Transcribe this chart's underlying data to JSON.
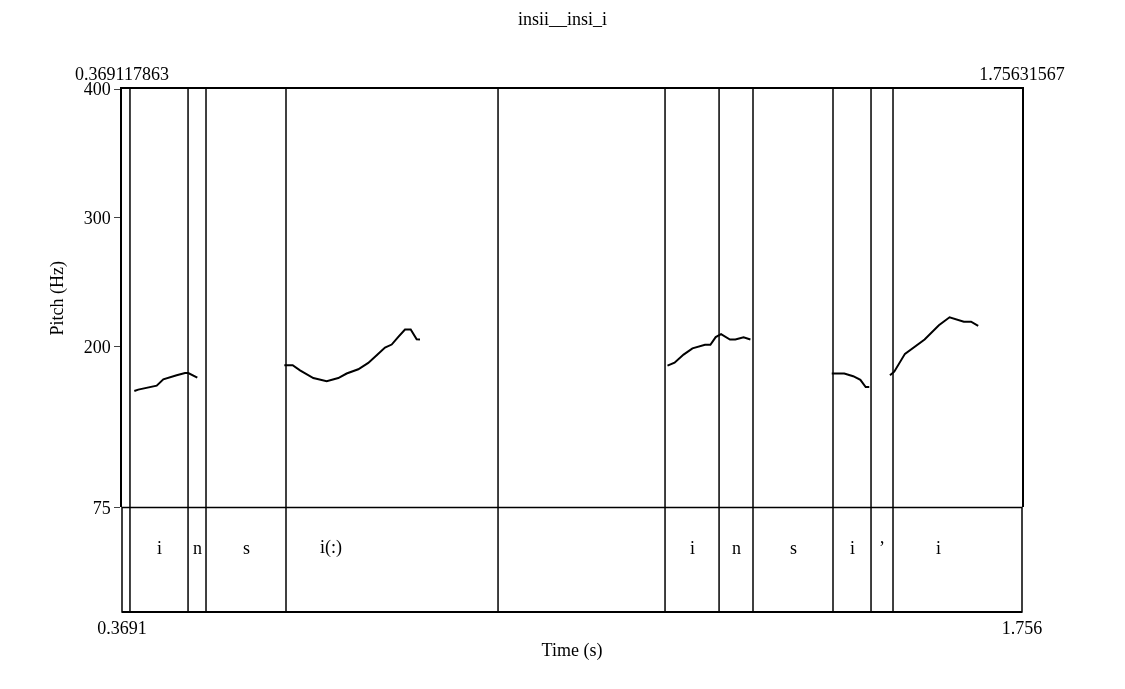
{
  "chart_data": {
    "type": "line",
    "title": "insii__insi_i",
    "xlabel": "Time (s)",
    "ylabel": "Pitch (Hz)",
    "x": [
      0.3881,
      0.3942,
      0.4226,
      0.4328,
      0.4534,
      0.4662,
      0.4713,
      0.4852,
      0.55,
      0.6193,
      0.6322,
      0.6435,
      0.664,
      0.6846,
      0.7025,
      0.7154,
      0.7333,
      0.7487,
      0.7617,
      0.7745,
      0.7848,
      0.795,
      0.8053,
      0.8141,
      0.8233,
      0.8284,
      1.0,
      1.2099,
      1.2208,
      1.2347,
      1.2484,
      1.2677,
      1.276,
      1.2842,
      1.2925,
      1.3062,
      1.3145,
      1.3272,
      1.3377,
      1.4,
      1.4631,
      1.4824,
      1.4961,
      1.5072,
      1.5154,
      1.5209,
      1.54,
      1.5528,
      1.5594,
      1.5759,
      1.6062,
      1.6282,
      1.6447,
      1.6667,
      1.6778,
      1.6888
    ],
    "series": [
      {
        "color": "#000000",
        "values": [
          165.4,
          166.5,
          169.6,
          174.5,
          177.6,
          179.4,
          179.4,
          175.8,
          null,
          185.4,
          185.4,
          181.5,
          175.5,
          173.0,
          175.5,
          179.0,
          182.3,
          187.2,
          193.2,
          199.2,
          201.5,
          207.4,
          213.2,
          213.2,
          205.6,
          205.4,
          null,
          185.1,
          187.4,
          193.7,
          198.5,
          201.3,
          201.3,
          207.3,
          209.6,
          205.4,
          205.4,
          207.1,
          205.4,
          null,
          179.0,
          179.0,
          176.9,
          174.1,
          168.5,
          168.5,
          null,
          177.6,
          180.4,
          194.3,
          205.4,
          216.5,
          222.7,
          219.3,
          219.3,
          216.0
        ]
      }
    ],
    "xlim": [
      0.369117863,
      1.75631567
    ],
    "xticks": [
      {
        "value": 0.369117863,
        "label": "0.3691"
      },
      {
        "value": 1.75631567,
        "label": "1.756"
      }
    ],
    "x2lim": [
      0.369117863,
      1.75631567
    ],
    "x2ticks": [
      {
        "value": 0.369117863,
        "label": "0.369117863"
      },
      {
        "value": 1.75631567,
        "label": "1.75631567"
      }
    ],
    "ylim": [
      75,
      400
    ],
    "yticks": [
      75,
      200,
      300,
      400
    ],
    "ref_lines": [
      {
        "axis": "x",
        "value": 0.3814,
        "label": "i"
      },
      {
        "axis": "x",
        "value": 0.4709,
        "label": "n"
      },
      {
        "axis": "x",
        "value": 0.4986,
        "label": "s"
      },
      {
        "axis": "x",
        "value": 0.6219,
        "label": "i(:)"
      },
      {
        "axis": "x",
        "value": 0.9487
      },
      {
        "axis": "x",
        "value": 1.2061,
        "label": "i"
      },
      {
        "axis": "x",
        "value": 1.2894,
        "label": "n"
      },
      {
        "axis": "x",
        "value": 1.3417,
        "label": "s"
      },
      {
        "axis": "x",
        "value": 1.465,
        "label": "i"
      },
      {
        "axis": "x",
        "value": 1.5236,
        "label": "’"
      },
      {
        "axis": "x",
        "value": 1.5575,
        "label": "i"
      }
    ],
    "marker": "none",
    "line_style": "solid"
  }
}
